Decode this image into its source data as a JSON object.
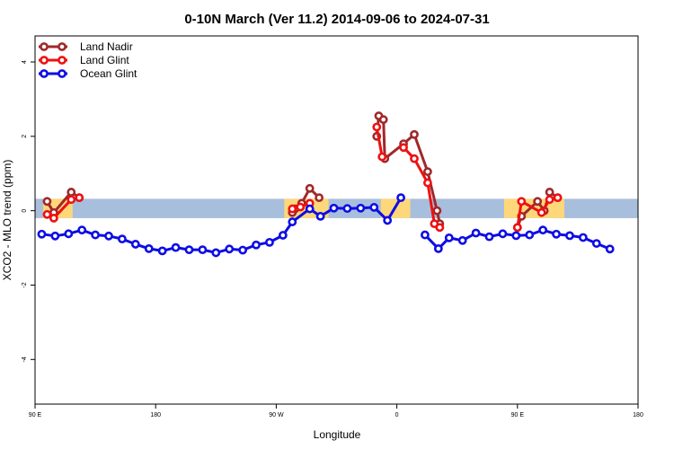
{
  "chart_data": {
    "type": "line",
    "title": "0-10N March (Ver 11.2)   2014-09-06 to 2024-07-31",
    "xlabel": "Longitude",
    "ylabel": "XCO2 - MLO trend (ppm)",
    "x_ticks": [
      {
        "value": 90,
        "label": "90 E"
      },
      {
        "value": 180,
        "label": "180"
      },
      {
        "value": 270,
        "label": "90 W"
      },
      {
        "value": 360,
        "label": "0"
      },
      {
        "value": 450,
        "label": "90 E"
      },
      {
        "value": 540,
        "label": "180"
      }
    ],
    "y_ticks": [
      -4,
      -2,
      0,
      2,
      4
    ],
    "xlim": [
      90,
      540
    ],
    "ylim": [
      -5.2,
      4.7
    ],
    "background_band": {
      "ymin": -0.2,
      "ymax": 0.32,
      "ocean_color": "#a8bedd",
      "land_color": "#fdd77a"
    },
    "land_segments": [
      [
        96,
        118
      ],
      [
        276,
        309
      ],
      [
        348,
        370
      ],
      [
        440,
        485
      ]
    ],
    "legend_position": "top-left",
    "series": [
      {
        "name": "Land Nadir",
        "color": "#a0282a",
        "segments": [
          [
            [
              99,
              0.25
            ],
            [
              104,
              -0.05
            ],
            [
              117,
              0.5
            ],
            [
              123,
              0.35
            ]
          ],
          [
            [
              282,
              -0.05
            ],
            [
              284,
              0.05
            ],
            [
              289,
              0.2
            ],
            [
              295,
              0.6
            ],
            [
              302,
              0.35
            ]
          ],
          [
            [
              345,
              2.0
            ],
            [
              346.5,
              2.55
            ],
            [
              350,
              2.45
            ],
            [
              351,
              1.4
            ],
            [
              365,
              1.8
            ],
            [
              373,
              2.05
            ],
            [
              383,
              1.05
            ],
            [
              390,
              0.0
            ],
            [
              392,
              -0.35
            ]
          ],
          [
            [
              450,
              -0.45
            ],
            [
              453,
              -0.15
            ],
            [
              465,
              0.25
            ],
            [
              470,
              0.0
            ],
            [
              474,
              0.5
            ],
            [
              480,
              0.35
            ]
          ]
        ]
      },
      {
        "name": "Land Glint",
        "color": "#ee1111",
        "segments": [
          [
            [
              99,
              -0.1
            ],
            [
              104,
              -0.2
            ],
            [
              117,
              0.3
            ],
            [
              123,
              0.35
            ]
          ],
          [
            [
              282,
              0.05
            ],
            [
              288,
              0.1
            ],
            [
              295,
              0.2
            ]
          ],
          [
            [
              345,
              2.25
            ],
            [
              349,
              1.45
            ]
          ],
          [
            [
              365,
              1.7
            ],
            [
              373,
              1.4
            ],
            [
              383,
              0.75
            ],
            [
              388,
              -0.35
            ],
            [
              392,
              -0.45
            ]
          ],
          [
            [
              450,
              -0.45
            ],
            [
              453,
              0.25
            ],
            [
              468,
              -0.05
            ],
            [
              474,
              0.3
            ],
            [
              480,
              0.35
            ]
          ]
        ]
      },
      {
        "name": "Ocean Glint",
        "color": "#0d0de4",
        "segments": [
          [
            [
              95,
              -0.63
            ],
            [
              105,
              -0.68
            ],
            [
              115,
              -0.62
            ],
            [
              125,
              -0.52
            ],
            [
              135,
              -0.65
            ],
            [
              145,
              -0.68
            ],
            [
              155,
              -0.76
            ],
            [
              165,
              -0.9
            ],
            [
              175,
              -1.02
            ],
            [
              185,
              -1.08
            ],
            [
              195,
              -0.99
            ],
            [
              205,
              -1.05
            ],
            [
              215,
              -1.05
            ],
            [
              225,
              -1.13
            ],
            [
              235,
              -1.03
            ],
            [
              245,
              -1.06
            ],
            [
              255,
              -0.92
            ],
            [
              265,
              -0.85
            ],
            [
              275,
              -0.66
            ],
            [
              282,
              -0.3
            ],
            [
              295,
              0.05
            ],
            [
              303,
              -0.15
            ],
            [
              313,
              0.07
            ],
            [
              323,
              0.06
            ],
            [
              333,
              0.07
            ],
            [
              343,
              0.09
            ],
            [
              353,
              -0.26
            ],
            [
              363,
              0.35
            ]
          ],
          [
            [
              381,
              -0.65
            ],
            [
              391,
              -1.02
            ],
            [
              399,
              -0.73
            ],
            [
              409,
              -0.8
            ],
            [
              419,
              -0.6
            ],
            [
              429,
              -0.7
            ],
            [
              439,
              -0.62
            ],
            [
              449,
              -0.67
            ],
            [
              459,
              -0.65
            ],
            [
              469,
              -0.52
            ],
            [
              479,
              -0.63
            ],
            [
              489,
              -0.67
            ],
            [
              499,
              -0.72
            ],
            [
              509,
              -0.88
            ],
            [
              519,
              -1.03
            ]
          ]
        ]
      }
    ]
  }
}
